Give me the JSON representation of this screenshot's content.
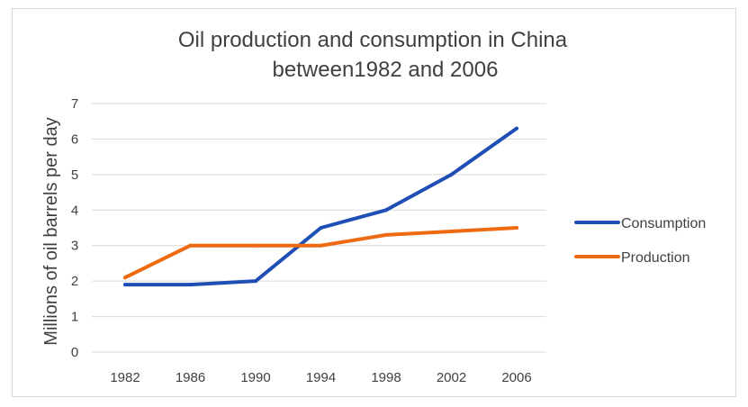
{
  "chart_data": {
    "type": "line",
    "title_lines": [
      "Oil production and consumption in China",
      "between1982 and 2006"
    ],
    "xlabel": "",
    "ylabel": "Millions of oil barrels per day",
    "categories": [
      "1982",
      "1986",
      "1990",
      "1994",
      "1998",
      "2002",
      "2006"
    ],
    "y_ticks": [
      "0",
      "1",
      "2",
      "3",
      "4",
      "5",
      "6",
      "7"
    ],
    "ylim": [
      0,
      7
    ],
    "grid": true,
    "legend_position": "right",
    "series": [
      {
        "name": "Consumption",
        "color": "#1f4eb4",
        "values": [
          1.9,
          1.9,
          2.0,
          3.5,
          4.0,
          5.0,
          6.3
        ]
      },
      {
        "name": "Production",
        "color": "#ed6a12",
        "values": [
          2.1,
          3.0,
          3.0,
          3.0,
          3.3,
          3.4,
          3.5
        ]
      }
    ]
  }
}
